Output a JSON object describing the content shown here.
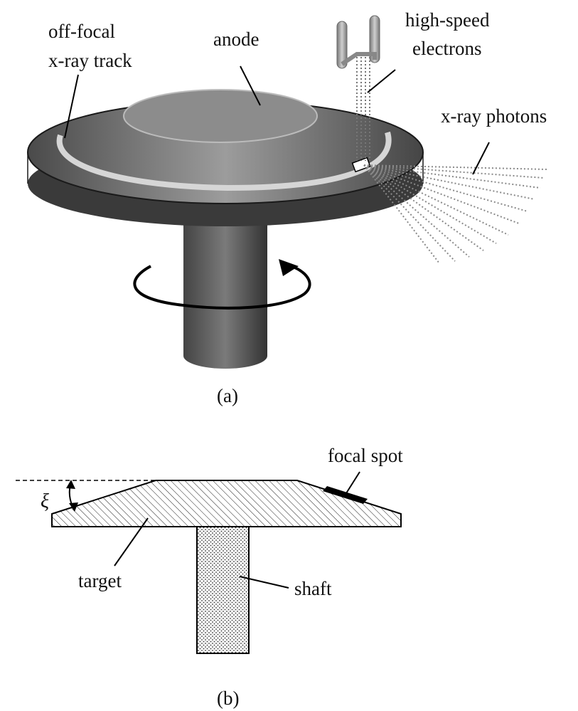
{
  "figure_a": {
    "labels": {
      "off_focal_line1": "off-focal",
      "off_focal_line2": "x-ray track",
      "anode": "anode",
      "electrons_line1": "high-speed",
      "electrons_line2": "electrons",
      "photons": "x-ray photons"
    },
    "caption": "(a)"
  },
  "figure_b": {
    "labels": {
      "focal_spot": "focal spot",
      "angle_symbol": "ξ",
      "target": "target",
      "shaft": "shaft"
    },
    "caption": "(b)"
  }
}
